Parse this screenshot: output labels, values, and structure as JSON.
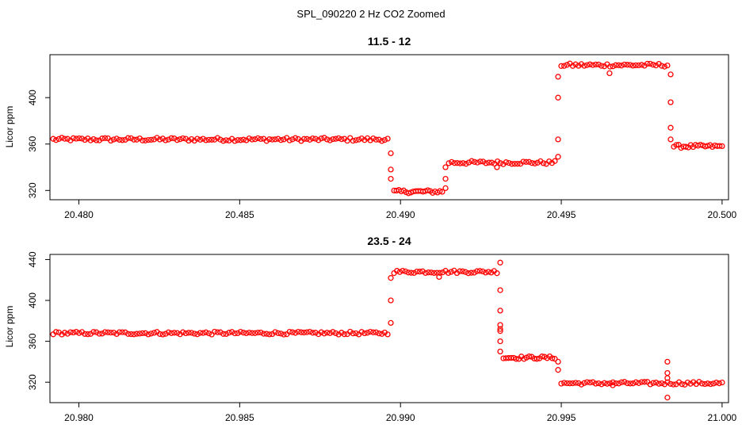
{
  "figure_title": "SPL_090220  2 Hz CO2 Zoomed",
  "colors": {
    "points": "#ff0000",
    "axes": "#000000",
    "background": "#ffffff"
  },
  "chart_data": [
    {
      "type": "scatter",
      "title": "11.5 - 12",
      "xlabel": "",
      "ylabel": "Licor ppm",
      "xlim": [
        20.4791,
        20.5002
      ],
      "ylim": [
        312,
        437
      ],
      "xticks": [
        20.48,
        20.485,
        20.49,
        20.495,
        20.5
      ],
      "xtick_labels": [
        "20.480",
        "20.485",
        "20.490",
        "20.495",
        "20.500"
      ],
      "yticks": [
        320,
        360,
        400
      ],
      "ytick_labels": [
        "320",
        "360",
        "400"
      ],
      "segments": [
        {
          "x": [
            20.4792,
            20.4896
          ],
          "y": 364
        },
        {
          "x": [
            20.4898,
            20.4913
          ],
          "y": 319
        },
        {
          "x": [
            20.4915,
            20.4948
          ],
          "y": 344
        },
        {
          "x": [
            20.495,
            20.4983
          ],
          "y": 428
        },
        {
          "x": [
            20.4985,
            20.5
          ],
          "y": 358
        }
      ],
      "transitions": [
        {
          "x": 20.4897,
          "y": [
            352,
            338,
            330
          ]
        },
        {
          "x": 20.4914,
          "y": [
            322,
            330,
            340
          ]
        },
        {
          "x": 20.4949,
          "y": [
            349,
            364,
            400,
            418
          ]
        },
        {
          "x": 20.4984,
          "y": [
            420,
            396,
            374,
            364
          ]
        }
      ],
      "outliers": [
        {
          "x": 20.493,
          "y": 340
        },
        {
          "x": 20.4965,
          "y": 421
        }
      ]
    },
    {
      "type": "scatter",
      "title": "23.5 - 24",
      "xlabel": "",
      "ylabel": "Licor ppm",
      "xlim": [
        20.9791,
        21.0002
      ],
      "ylim": [
        300,
        445
      ],
      "xticks": [
        20.98,
        20.985,
        20.99,
        20.995,
        21.0
      ],
      "xtick_labels": [
        "20.980",
        "20.985",
        "20.990",
        "20.995",
        "21.000"
      ],
      "yticks": [
        320,
        360,
        400,
        440
      ],
      "ytick_labels": [
        "320",
        "360",
        "400",
        "440"
      ],
      "segments": [
        {
          "x": [
            20.9792,
            20.9896
          ],
          "y": 368
        },
        {
          "x": [
            20.9898,
            20.993
          ],
          "y": 428
        },
        {
          "x": [
            20.9932,
            20.9948
          ],
          "y": 344
        },
        {
          "x": [
            20.995,
            21.0
          ],
          "y": 319
        }
      ],
      "transitions": [
        {
          "x": 20.9897,
          "y": [
            378,
            400,
            422
          ]
        },
        {
          "x": 20.9931,
          "y": [
            410,
            390,
            376,
            372,
            370,
            360,
            350
          ]
        },
        {
          "x": 20.9949,
          "y": [
            340,
            332
          ]
        }
      ],
      "outliers": [
        {
          "x": 20.9931,
          "y": 437
        },
        {
          "x": 20.9912,
          "y": 423
        },
        {
          "x": 20.9983,
          "y": 340
        },
        {
          "x": 20.9983,
          "y": 329
        },
        {
          "x": 20.9983,
          "y": 324
        },
        {
          "x": 20.9983,
          "y": 305
        },
        {
          "x": 20.9966,
          "y": 317
        }
      ]
    }
  ]
}
